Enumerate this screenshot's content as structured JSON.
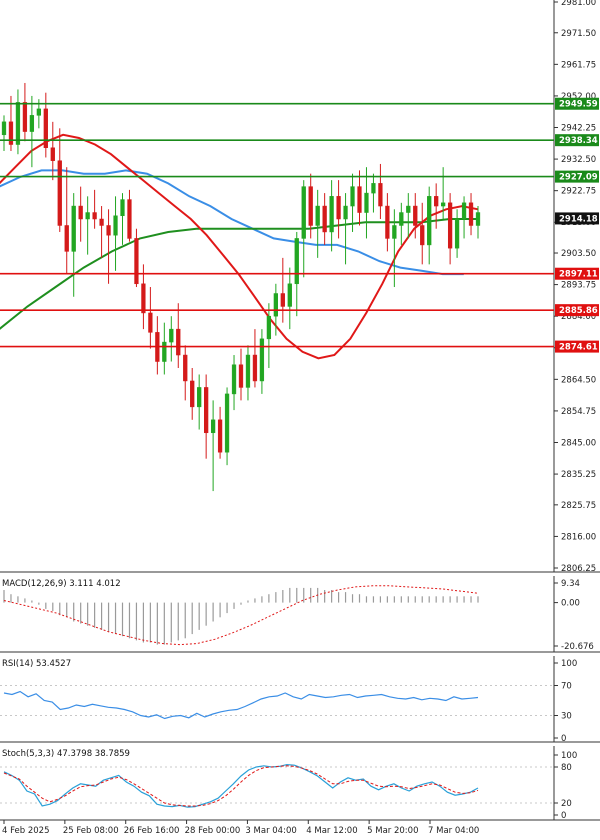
{
  "chart_data": {
    "type": "candlestick",
    "price_ticks": [
      "2981.00",
      "2971.50",
      "2961.75",
      "2952.00",
      "2942.25",
      "2932.50",
      "2922.75",
      "2913.00",
      "2903.50",
      "2893.75",
      "2884.00",
      "2874.25",
      "2864.50",
      "2854.75",
      "2845.00",
      "2835.25",
      "2825.75",
      "2816.00",
      "2806.25"
    ],
    "price_range": [
      2806.25,
      2981.0
    ],
    "x_labels": [
      "4 Feb 2025",
      "25 Feb 08:00",
      "26 Feb 16:00",
      "28 Feb 00:00",
      "3 Mar 04:00",
      "4 Mar 12:00",
      "5 Mar 20:00",
      "7 Mar 04:00"
    ],
    "levels": [
      {
        "value": 2949.59,
        "label": "2949.59",
        "color": "#1a8a1a"
      },
      {
        "value": 2938.34,
        "label": "2938.34",
        "color": "#1a8a1a"
      },
      {
        "value": 2927.09,
        "label": "2927.09",
        "color": "#1a8a1a"
      },
      {
        "value": 2897.11,
        "label": "2897.11",
        "color": "#e01010"
      },
      {
        "value": 2885.86,
        "label": "2885.86",
        "color": "#e01010"
      },
      {
        "value": 2874.61,
        "label": "2874.61",
        "color": "#e01010"
      }
    ],
    "current_price": {
      "value": 2914.18,
      "label": "2914.18"
    },
    "candles": [
      [
        2940,
        2946,
        2935,
        2944
      ],
      [
        2944,
        2952,
        2935,
        2937
      ],
      [
        2937,
        2954,
        2934,
        2950
      ],
      [
        2950,
        2956,
        2938,
        2941
      ],
      [
        2941,
        2952,
        2930,
        2946
      ],
      [
        2946,
        2951,
        2942,
        2948
      ],
      [
        2948,
        2953,
        2933,
        2936
      ],
      [
        2936,
        2944,
        2926,
        2932
      ],
      [
        2932,
        2942,
        2910,
        2912
      ],
      [
        2912,
        2930,
        2897,
        2904
      ],
      [
        2904,
        2922,
        2890,
        2918
      ],
      [
        2918,
        2924,
        2907,
        2914
      ],
      [
        2914,
        2921,
        2903,
        2916
      ],
      [
        2916,
        2923,
        2911,
        2914
      ],
      [
        2914,
        2918,
        2902,
        2912
      ],
      [
        2912,
        2917,
        2894,
        2909
      ],
      [
        2909,
        2921,
        2898,
        2915
      ],
      [
        2915,
        2922,
        2906,
        2920
      ],
      [
        2920,
        2923,
        2907,
        2908
      ],
      [
        2908,
        2911,
        2893,
        2894
      ],
      [
        2894,
        2900,
        2880,
        2885
      ],
      [
        2885,
        2893,
        2874,
        2879
      ],
      [
        2879,
        2884,
        2866,
        2870
      ],
      [
        2870,
        2882,
        2866,
        2876
      ],
      [
        2876,
        2884,
        2870,
        2880
      ],
      [
        2880,
        2888,
        2868,
        2872
      ],
      [
        2872,
        2875,
        2858,
        2864
      ],
      [
        2864,
        2868,
        2852,
        2856
      ],
      [
        2856,
        2866,
        2849,
        2862
      ],
      [
        2862,
        2866,
        2840,
        2848
      ],
      [
        2848,
        2858,
        2830,
        2852
      ],
      [
        2852,
        2856,
        2840,
        2842
      ],
      [
        2842,
        2862,
        2838,
        2860
      ],
      [
        2860,
        2872,
        2855,
        2869
      ],
      [
        2869,
        2874,
        2858,
        2862
      ],
      [
        2862,
        2875,
        2858,
        2872
      ],
      [
        2872,
        2880,
        2862,
        2864
      ],
      [
        2864,
        2880,
        2860,
        2877
      ],
      [
        2877,
        2888,
        2868,
        2884
      ],
      [
        2884,
        2894,
        2878,
        2891
      ],
      [
        2891,
        2902,
        2882,
        2887
      ],
      [
        2887,
        2899,
        2880,
        2894
      ],
      [
        2894,
        2910,
        2884,
        2908
      ],
      [
        2908,
        2926,
        2896,
        2924
      ],
      [
        2924,
        2928,
        2908,
        2912
      ],
      [
        2912,
        2923,
        2902,
        2918
      ],
      [
        2918,
        2922,
        2906,
        2910
      ],
      [
        2910,
        2926,
        2904,
        2921
      ],
      [
        2921,
        2926,
        2908,
        2914
      ],
      [
        2914,
        2922,
        2900,
        2918
      ],
      [
        2918,
        2928,
        2910,
        2924
      ],
      [
        2924,
        2929,
        2912,
        2916
      ],
      [
        2916,
        2930,
        2908,
        2922
      ],
      [
        2922,
        2928,
        2916,
        2925
      ],
      [
        2925,
        2931,
        2914,
        2918
      ],
      [
        2918,
        2922,
        2904,
        2908
      ],
      [
        2908,
        2917,
        2893,
        2912
      ],
      [
        2912,
        2919,
        2906,
        2916
      ],
      [
        2916,
        2922,
        2908,
        2918
      ],
      [
        2918,
        2922,
        2908,
        2912
      ],
      [
        2912,
        2919,
        2900,
        2906
      ],
      [
        2906,
        2924,
        2900,
        2921
      ],
      [
        2921,
        2925,
        2911,
        2918
      ],
      [
        2918,
        2930,
        2914,
        2919
      ],
      [
        2919,
        2922,
        2900,
        2905
      ],
      [
        2905,
        2917,
        2902,
        2914
      ],
      [
        2914,
        2921,
        2908,
        2919
      ],
      [
        2919,
        2922,
        2909,
        2912
      ],
      [
        2912,
        2918,
        2908,
        2916
      ]
    ],
    "ma_red": [
      2925,
      2930,
      2935,
      2938,
      2940,
      2939,
      2937,
      2934,
      2930,
      2926,
      2922,
      2918,
      2914,
      2909,
      2903,
      2897,
      2890,
      2883,
      2877,
      2873,
      2871,
      2872,
      2877,
      2885,
      2894,
      2904,
      2911,
      2915,
      2917,
      2918,
      2917
    ],
    "ma_blue": [
      2924,
      2927,
      2929,
      2929,
      2928,
      2928,
      2929,
      2928,
      2925,
      2921,
      2918,
      2914,
      2911,
      2908,
      2907,
      2906,
      2906,
      2904,
      2901,
      2899,
      2898,
      2897,
      2897
    ],
    "ma_green": [
      2880,
      2887,
      2893,
      2899,
      2904,
      2908,
      2910,
      2911,
      2911,
      2911,
      2911,
      2911,
      2912,
      2913,
      2913,
      2913,
      2914,
      2914
    ],
    "macd": {
      "label": "MACD(12,26,9) 3.111 4.012",
      "ticks": [
        "9.34",
        "0.00",
        "-20.676"
      ],
      "range": [
        -20.676,
        9.34
      ],
      "hist": [
        6,
        4,
        3,
        2,
        1,
        -1,
        -3,
        -4,
        -6,
        -7,
        -9,
        -10,
        -11,
        -12,
        -13,
        -14,
        -15,
        -16,
        -17,
        -18,
        -19,
        -19,
        -20,
        -20,
        -19,
        -18,
        -17,
        -15,
        -13,
        -11,
        -9,
        -7,
        -5,
        -3,
        -1,
        1,
        2,
        3,
        4,
        5,
        6,
        7,
        7,
        7,
        7,
        7,
        6,
        6,
        5,
        5,
        4,
        4,
        3,
        3,
        3,
        3,
        3,
        3,
        3,
        3,
        3,
        3,
        3,
        3,
        3,
        3,
        3,
        3,
        3
      ],
      "signal": [
        1,
        -1,
        -3,
        -5,
        -8,
        -11,
        -14,
        -16,
        -18,
        -19.5,
        -20,
        -19.5,
        -17.5,
        -14.5,
        -11,
        -7,
        -3,
        1,
        4,
        6,
        7.5,
        8,
        8,
        7.5,
        7,
        6.5,
        5.5,
        4.5
      ]
    },
    "rsi": {
      "label": "RSI(14) 53.4527",
      "ticks": [
        "100",
        "70",
        "30",
        "0"
      ],
      "values": [
        60,
        58,
        62,
        55,
        59,
        50,
        48,
        38,
        40,
        44,
        42,
        45,
        43,
        41,
        40,
        38,
        35,
        30,
        28,
        31,
        26,
        29,
        30,
        27,
        33,
        28,
        32,
        35,
        37,
        38,
        42,
        47,
        52,
        55,
        56,
        60,
        55,
        52,
        58,
        56,
        54,
        55,
        57,
        58,
        54,
        56,
        57,
        58,
        55,
        53,
        52,
        54,
        51,
        53,
        52,
        50,
        55,
        52,
        53,
        54
      ]
    },
    "stoch": {
      "label": "Stoch(5,3,3) 47.3798 38.7859",
      "ticks": [
        "100",
        "80",
        "20",
        "0"
      ],
      "k": [
        72,
        66,
        58,
        40,
        35,
        15,
        18,
        24,
        35,
        45,
        52,
        50,
        48,
        58,
        62,
        66,
        55,
        48,
        38,
        32,
        18,
        15,
        14,
        16,
        13,
        14,
        18,
        22,
        28,
        40,
        52,
        65,
        75,
        80,
        82,
        80,
        81,
        84,
        83,
        78,
        72,
        65,
        55,
        45,
        55,
        62,
        58,
        60,
        48,
        42,
        48,
        52,
        45,
        40,
        48,
        52,
        55,
        48,
        38,
        33,
        35,
        38,
        45
      ],
      "d": [
        70,
        65,
        60,
        48,
        38,
        28,
        22,
        26,
        32,
        40,
        47,
        49,
        50,
        55,
        60,
        63,
        59,
        52,
        44,
        36,
        28,
        20,
        17,
        16,
        15,
        15,
        16,
        19,
        24,
        32,
        43,
        55,
        66,
        74,
        79,
        80,
        81,
        82,
        81,
        78,
        74,
        68,
        60,
        52,
        52,
        56,
        58,
        58,
        53,
        48,
        47,
        48,
        47,
        44,
        46,
        49,
        52,
        50,
        44,
        38,
        36,
        37,
        41
      ]
    }
  }
}
